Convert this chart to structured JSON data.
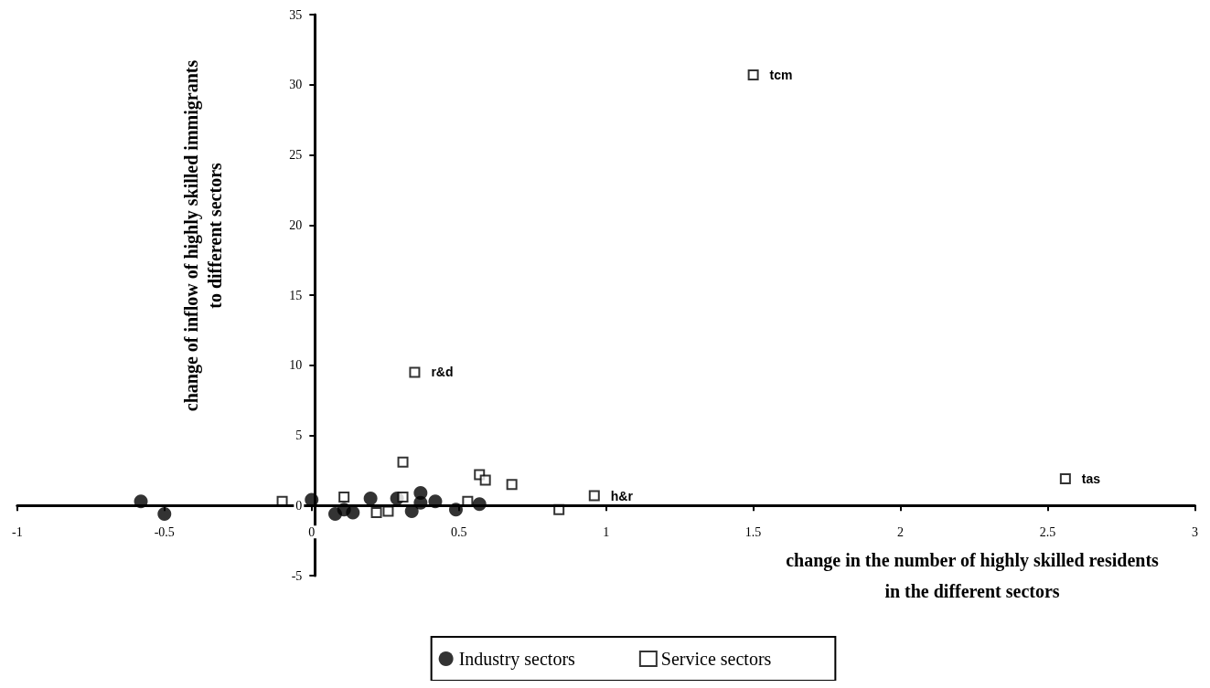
{
  "chart_data": {
    "type": "scatter",
    "xlabel": "change in the number of highly skilled residents\nin the different sectors",
    "ylabel": "change of inflow of highly skilled immigrants\nto different sectors",
    "xlim": [
      -1,
      3
    ],
    "xticks": [
      -1,
      -0.5,
      0,
      0.5,
      1,
      1.5,
      2,
      2.5,
      3
    ],
    "ylim": [
      -5,
      35
    ],
    "yticks": [
      -5,
      0,
      5,
      10,
      15,
      20,
      25,
      30,
      35
    ],
    "legend": "bottom",
    "annotations": [
      {
        "text": "tcm",
        "x": 1.5,
        "y": 30.7
      },
      {
        "text": "r&d",
        "x": 0.35,
        "y": 9.5
      },
      {
        "text": "h&r",
        "x": 0.96,
        "y": 0.7
      },
      {
        "text": "tas",
        "x": 2.56,
        "y": 1.9
      }
    ],
    "series": [
      {
        "name": "Industry sectors",
        "color": "#000000",
        "marker": "circle",
        "x": [
          -0.58,
          -0.5,
          0.0,
          0.08,
          0.11,
          0.14,
          0.2,
          0.29,
          0.34,
          0.37,
          0.37,
          0.42,
          0.49,
          0.57
        ],
        "values": [
          0.3,
          -0.6,
          0.4,
          -0.6,
          -0.3,
          -0.5,
          0.5,
          0.5,
          -0.4,
          0.9,
          0.2,
          0.3,
          -0.3,
          0.1
        ]
      },
      {
        "name": "Service sectors",
        "color": "#000000",
        "marker": "square",
        "x": [
          -0.1,
          0.11,
          0.22,
          0.26,
          0.31,
          0.31,
          0.35,
          0.53,
          0.57,
          0.59,
          0.68,
          0.84,
          0.96,
          1.5,
          2.56
        ],
        "values": [
          0.3,
          0.6,
          -0.5,
          -0.4,
          3.1,
          0.6,
          9.5,
          0.3,
          2.2,
          1.8,
          1.5,
          -0.3,
          0.7,
          30.7,
          1.9
        ]
      }
    ]
  }
}
